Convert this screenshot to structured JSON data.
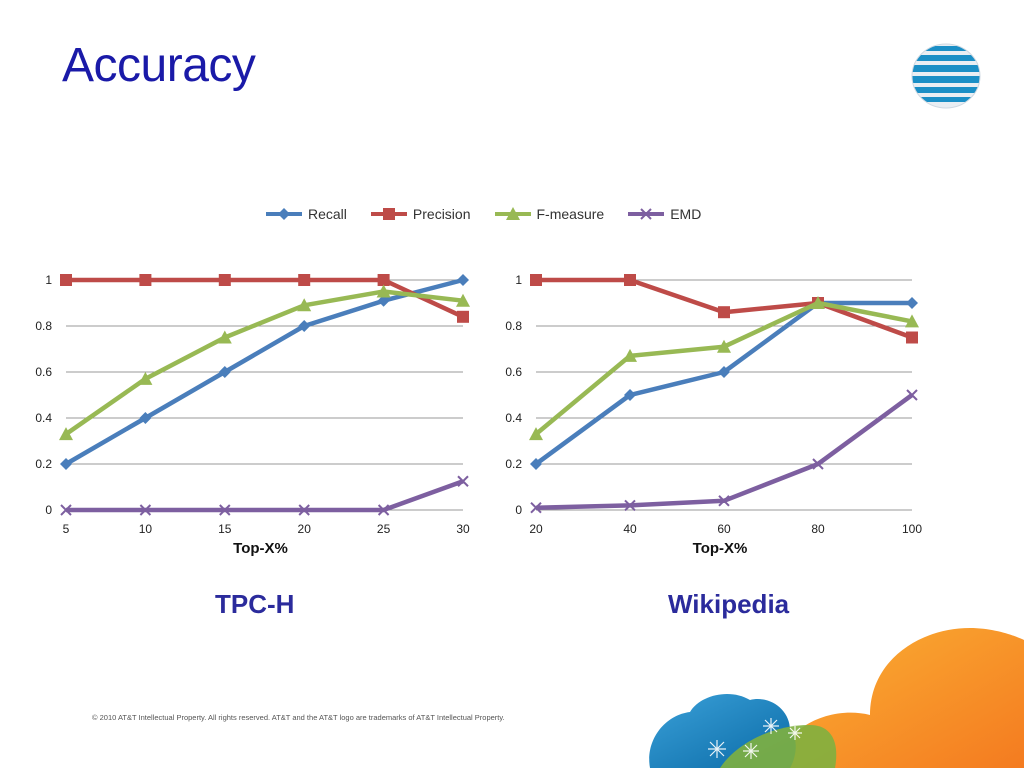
{
  "slide": {
    "title": "Accuracy",
    "footer": "© 2010 AT&T Intellectual Property. All rights reserved. AT&T and the AT&T logo are trademarks of AT&T Intellectual Property."
  },
  "legend": [
    {
      "name": "Recall",
      "color": "#4a7ebb",
      "marker": "diamond"
    },
    {
      "name": "Precision",
      "color": "#be4b48",
      "marker": "square"
    },
    {
      "name": "F-measure",
      "color": "#98b954",
      "marker": "triangle"
    },
    {
      "name": "EMD",
      "color": "#7d5fa0",
      "marker": "x"
    }
  ],
  "chart_data": [
    {
      "type": "line",
      "caption": "TPC-H",
      "xlabel": "Top-X%",
      "ylabel": "",
      "x": [
        5,
        10,
        15,
        20,
        25,
        30
      ],
      "ylim": [
        0,
        1
      ],
      "yticks": [
        "0",
        "0.2",
        "0.4",
        "0.6",
        "0.8",
        "1"
      ],
      "grid": true,
      "series": [
        {
          "name": "Recall",
          "values": [
            0.2,
            0.4,
            0.6,
            0.8,
            0.91,
            1.0
          ]
        },
        {
          "name": "Precision",
          "values": [
            1.0,
            1.0,
            1.0,
            1.0,
            1.0,
            0.84
          ]
        },
        {
          "name": "F-measure",
          "values": [
            0.33,
            0.57,
            0.75,
            0.89,
            0.95,
            0.91
          ]
        },
        {
          "name": "EMD",
          "values": [
            0,
            0,
            0,
            0,
            0,
            0.125
          ]
        }
      ]
    },
    {
      "type": "line",
      "caption": "Wikipedia",
      "xlabel": "Top-X%",
      "ylabel": "",
      "x": [
        20,
        40,
        60,
        80,
        100
      ],
      "ylim": [
        0,
        1
      ],
      "yticks": [
        "0",
        "0.2",
        "0.4",
        "0.6",
        "0.8",
        "1"
      ],
      "grid": true,
      "series": [
        {
          "name": "Recall",
          "values": [
            0.2,
            0.5,
            0.6,
            0.9,
            0.9
          ]
        },
        {
          "name": "Precision",
          "values": [
            1.0,
            1.0,
            0.86,
            0.9,
            0.75
          ]
        },
        {
          "name": "F-measure",
          "values": [
            0.33,
            0.67,
            0.71,
            0.9,
            0.82
          ]
        },
        {
          "name": "EMD",
          "values": [
            0.01,
            0.02,
            0.04,
            0.2,
            0.5
          ]
        }
      ]
    }
  ]
}
